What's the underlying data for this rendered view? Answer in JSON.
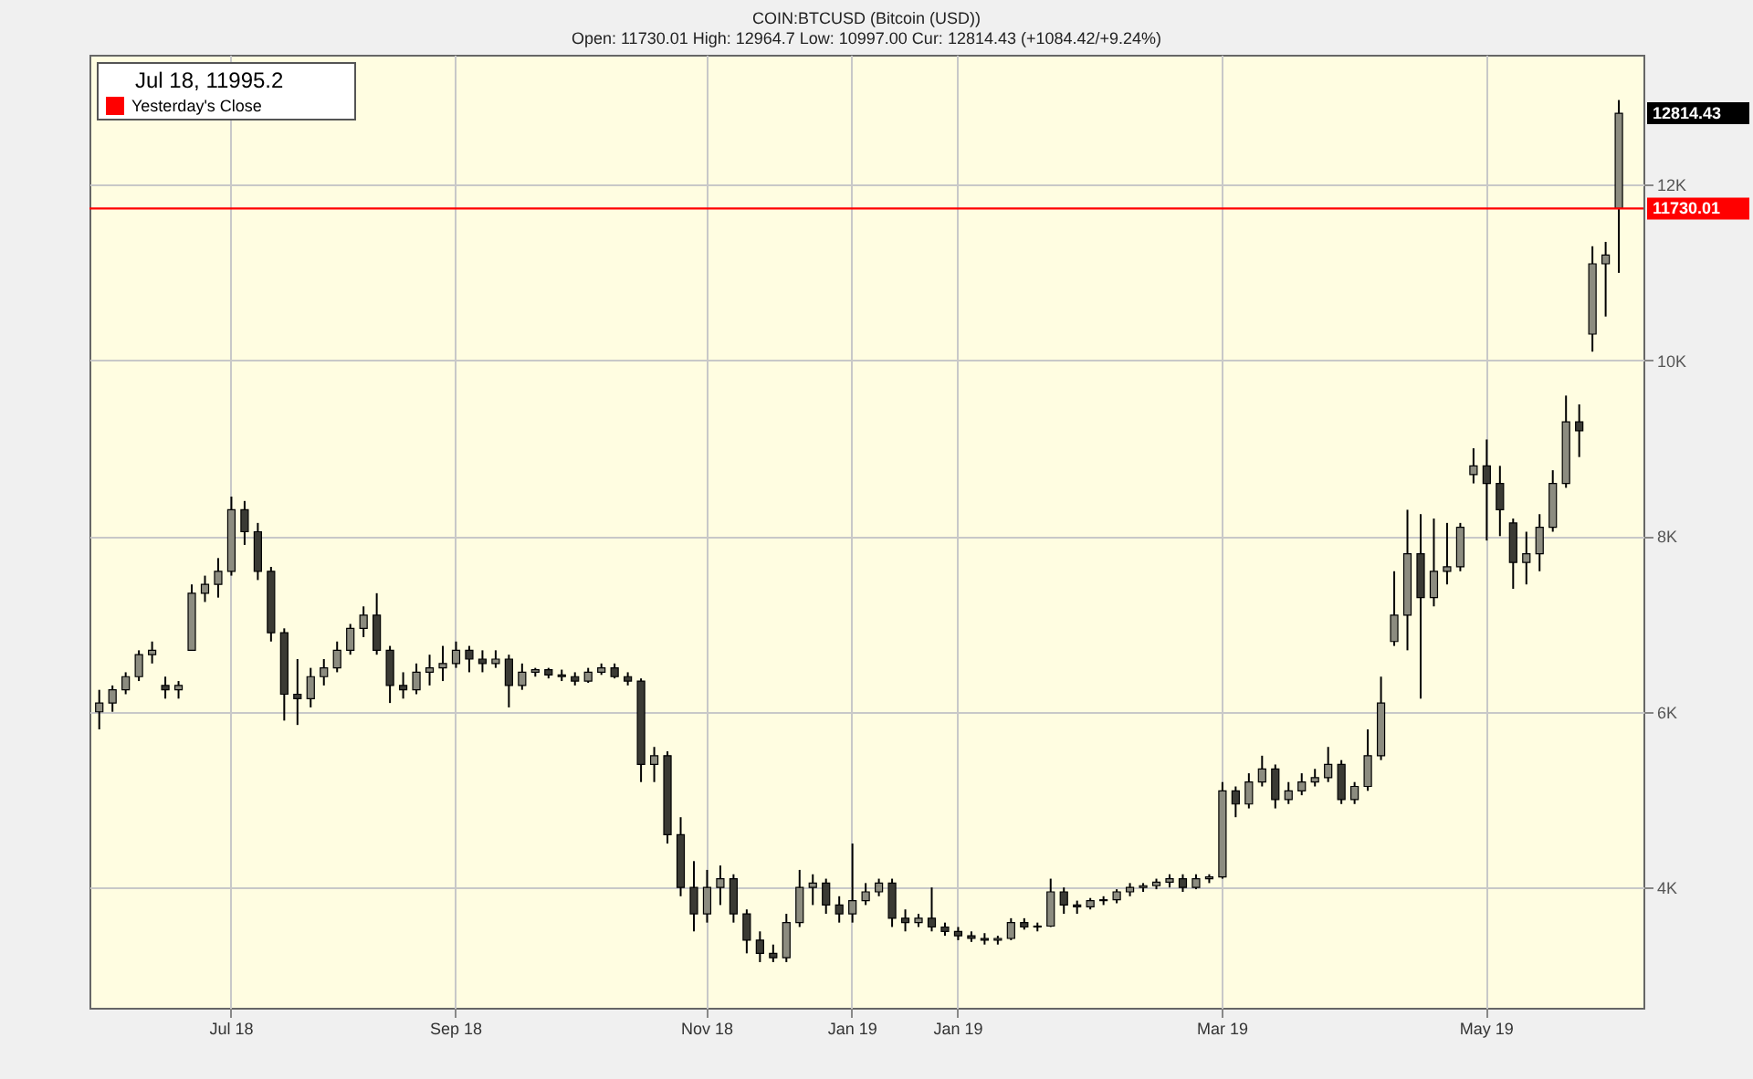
{
  "chart_data": {
    "type": "candlestick",
    "title": "COIN:BTCUSD (Bitcoin (USD))",
    "subtitle": "Open: 11730.01 High: 12964.7 Low: 10997.00 Cur: 12814.43 (+1084.42/+9.24%)",
    "categories": [
      null,
      null,
      null,
      null,
      null,
      null,
      null,
      null,
      null,
      null,
      "Jul 18",
      null,
      null,
      null,
      null,
      null,
      null,
      null,
      null,
      null,
      null,
      null,
      null,
      null,
      null,
      null,
      null,
      "Sep 18",
      null,
      null,
      null,
      null,
      null,
      null,
      null,
      null,
      null,
      null,
      null,
      null,
      null,
      null,
      null,
      null,
      null,
      null,
      "Nov 18",
      null,
      null,
      null,
      null,
      null,
      null,
      null,
      null,
      null,
      null,
      "Jan 19",
      null,
      null,
      null,
      null,
      null,
      null,
      null,
      "Jan 19",
      null,
      null,
      null,
      null,
      null,
      null,
      null,
      null,
      null,
      null,
      null,
      null,
      null,
      null,
      null,
      null,
      null,
      null,
      null,
      "Mar 19",
      null,
      null,
      null,
      null,
      null,
      null,
      null,
      null,
      null,
      null,
      null,
      null,
      null,
      null,
      null,
      null,
      null,
      null,
      null,
      "May 19",
      null,
      null,
      null,
      null,
      null,
      null,
      null,
      null,
      null,
      null
    ],
    "ohlc": [
      [
        6000,
        6250,
        5800,
        6100
      ],
      [
        6100,
        6300,
        6000,
        6250
      ],
      [
        6250,
        6450,
        6200,
        6400
      ],
      [
        6400,
        6700,
        6350,
        6650
      ],
      [
        6650,
        6800,
        6550,
        6700
      ],
      [
        6300,
        6400,
        6150,
        6250
      ],
      [
        6250,
        6350,
        6150,
        6300
      ],
      [
        6700,
        7450,
        6700,
        7350
      ],
      [
        7350,
        7550,
        7250,
        7450
      ],
      [
        7450,
        7750,
        7300,
        7600
      ],
      [
        7600,
        8450,
        7550,
        8300
      ],
      [
        8300,
        8400,
        7900,
        8050
      ],
      [
        8050,
        8150,
        7500,
        7600
      ],
      [
        7600,
        7650,
        6800,
        6900
      ],
      [
        6900,
        6950,
        5900,
        6200
      ],
      [
        6200,
        6600,
        5850,
        6150
      ],
      [
        6150,
        6500,
        6050,
        6400
      ],
      [
        6400,
        6600,
        6300,
        6500
      ],
      [
        6500,
        6800,
        6450,
        6700
      ],
      [
        6700,
        7000,
        6650,
        6950
      ],
      [
        6950,
        7200,
        6850,
        7100
      ],
      [
        7100,
        7350,
        6650,
        6700
      ],
      [
        6700,
        6750,
        6100,
        6300
      ],
      [
        6300,
        6450,
        6150,
        6250
      ],
      [
        6250,
        6550,
        6200,
        6450
      ],
      [
        6450,
        6650,
        6300,
        6500
      ],
      [
        6500,
        6750,
        6350,
        6550
      ],
      [
        6550,
        6800,
        6500,
        6700
      ],
      [
        6700,
        6750,
        6450,
        6600
      ],
      [
        6600,
        6700,
        6450,
        6550
      ],
      [
        6550,
        6700,
        6500,
        6600
      ],
      [
        6600,
        6650,
        6050,
        6300
      ],
      [
        6300,
        6550,
        6250,
        6450
      ],
      [
        6450,
        6500,
        6400,
        6480
      ],
      [
        6480,
        6500,
        6380,
        6420
      ],
      [
        6420,
        6480,
        6350,
        6400
      ],
      [
        6400,
        6450,
        6300,
        6350
      ],
      [
        6350,
        6500,
        6330,
        6450
      ],
      [
        6450,
        6550,
        6420,
        6500
      ],
      [
        6500,
        6550,
        6380,
        6400
      ],
      [
        6400,
        6450,
        6300,
        6350
      ],
      [
        6350,
        6380,
        5200,
        5400
      ],
      [
        5400,
        5600,
        5200,
        5500
      ],
      [
        5500,
        5550,
        4500,
        4600
      ],
      [
        4600,
        4800,
        3900,
        4000
      ],
      [
        4000,
        4300,
        3500,
        3700
      ],
      [
        3700,
        4200,
        3600,
        4000
      ],
      [
        4000,
        4250,
        3800,
        4100
      ],
      [
        4100,
        4150,
        3600,
        3700
      ],
      [
        3700,
        3750,
        3250,
        3400
      ],
      [
        3400,
        3500,
        3150,
        3250
      ],
      [
        3250,
        3350,
        3150,
        3200
      ],
      [
        3200,
        3700,
        3150,
        3600
      ],
      [
        3600,
        4200,
        3550,
        4000
      ],
      [
        4000,
        4150,
        3800,
        4050
      ],
      [
        4050,
        4100,
        3700,
        3800
      ],
      [
        3800,
        3900,
        3600,
        3700
      ],
      [
        3700,
        4500,
        3600,
        3850
      ],
      [
        3850,
        4050,
        3800,
        3950
      ],
      [
        3950,
        4100,
        3900,
        4050
      ],
      [
        4050,
        4100,
        3550,
        3650
      ],
      [
        3650,
        3750,
        3500,
        3600
      ],
      [
        3600,
        3700,
        3550,
        3650
      ],
      [
        3650,
        4000,
        3500,
        3550
      ],
      [
        3550,
        3600,
        3450,
        3500
      ],
      [
        3500,
        3550,
        3400,
        3450
      ],
      [
        3450,
        3500,
        3380,
        3420
      ],
      [
        3420,
        3480,
        3350,
        3400
      ],
      [
        3400,
        3450,
        3350,
        3420
      ],
      [
        3420,
        3650,
        3400,
        3600
      ],
      [
        3600,
        3650,
        3520,
        3550
      ],
      [
        3550,
        3600,
        3500,
        3560
      ],
      [
        3560,
        4100,
        3550,
        3950
      ],
      [
        3950,
        4000,
        3700,
        3800
      ],
      [
        3800,
        3850,
        3700,
        3780
      ],
      [
        3780,
        3880,
        3750,
        3850
      ],
      [
        3850,
        3900,
        3800,
        3860
      ],
      [
        3860,
        3980,
        3820,
        3950
      ],
      [
        3950,
        4050,
        3900,
        4000
      ],
      [
        4000,
        4050,
        3950,
        4020
      ],
      [
        4020,
        4100,
        3980,
        4060
      ],
      [
        4060,
        4150,
        4000,
        4100
      ],
      [
        4100,
        4150,
        3950,
        4000
      ],
      [
        4000,
        4150,
        3980,
        4100
      ],
      [
        4100,
        4150,
        4050,
        4120
      ],
      [
        4120,
        5200,
        4100,
        5100
      ],
      [
        5100,
        5150,
        4800,
        4950
      ],
      [
        4950,
        5300,
        4900,
        5200
      ],
      [
        5200,
        5500,
        5150,
        5350
      ],
      [
        5350,
        5400,
        4900,
        5000
      ],
      [
        5000,
        5200,
        4950,
        5100
      ],
      [
        5100,
        5300,
        5050,
        5200
      ],
      [
        5200,
        5350,
        5150,
        5250
      ],
      [
        5250,
        5600,
        5200,
        5400
      ],
      [
        5400,
        5450,
        4950,
        5000
      ],
      [
        5000,
        5200,
        4950,
        5150
      ],
      [
        5150,
        5800,
        5100,
        5500
      ],
      [
        5500,
        6400,
        5450,
        6100
      ],
      [
        6800,
        7600,
        6750,
        7100
      ],
      [
        7100,
        8300,
        6700,
        7800
      ],
      [
        7800,
        8250,
        6150,
        7300
      ],
      [
        7300,
        8200,
        7200,
        7600
      ],
      [
        7600,
        8150,
        7450,
        7650
      ],
      [
        7650,
        8150,
        7600,
        8100
      ],
      [
        8700,
        9000,
        8600,
        8800
      ],
      [
        8800,
        9100,
        7950,
        8600
      ],
      [
        8600,
        8800,
        8000,
        8300
      ],
      [
        8150,
        8200,
        7400,
        7700
      ],
      [
        7700,
        8050,
        7450,
        7800
      ],
      [
        7800,
        8250,
        7600,
        8100
      ],
      [
        8100,
        8750,
        8050,
        8600
      ],
      [
        8600,
        9600,
        8550,
        9300
      ],
      [
        9300,
        9500,
        8900,
        9200
      ],
      [
        10300,
        11300,
        10100,
        11100
      ],
      [
        11100,
        11350,
        10500,
        11200
      ],
      [
        11730.01,
        12964.7,
        10997,
        12814.43
      ]
    ],
    "colors": [
      "#8c8c80",
      "#8c8c80",
      "#8c8c80",
      "#8c8c80",
      "#8c8c80",
      "#3a3a34",
      "#8c8c80",
      "#8c8c80",
      "#8c8c80",
      "#8c8c80",
      "#8c8c80",
      "#3a3a34",
      "#3a3a34",
      "#3a3a34",
      "#3a3a34",
      "#3a3a34",
      "#8c8c80",
      "#8c8c80",
      "#8c8c80",
      "#8c8c80",
      "#8c8c80",
      "#3a3a34",
      "#3a3a34",
      "#3a3a34",
      "#8c8c80",
      "#8c8c80",
      "#8c8c80",
      "#8c8c80",
      "#3a3a34",
      "#3a3a34",
      "#8c8c80",
      "#3a3a34",
      "#8c8c80",
      "#8c8c80",
      "#3a3a34",
      "#3a3a34",
      "#3a3a34",
      "#8c8c80",
      "#8c8c80",
      "#3a3a34",
      "#3a3a34",
      "#3a3a34",
      "#8c8c80",
      "#3a3a34",
      "#3a3a34",
      "#3a3a34",
      "#8c8c80",
      "#8c8c80",
      "#3a3a34",
      "#3a3a34",
      "#3a3a34",
      "#3a3a34",
      "#8c8c80",
      "#8c8c80",
      "#8c8c80",
      "#3a3a34",
      "#3a3a34",
      "#8c8c80",
      "#8c8c80",
      "#8c8c80",
      "#3a3a34",
      "#3a3a34",
      "#8c8c80",
      "#3a3a34",
      "#3a3a34",
      "#3a3a34",
      "#3a3a34",
      "#3a3a34",
      "#8c8c80",
      "#8c8c80",
      "#3a3a34",
      "#8c8c80",
      "#8c8c80",
      "#3a3a34",
      "#3a3a34",
      "#8c8c80",
      "#8c8c80",
      "#8c8c80",
      "#8c8c80",
      "#8c8c80",
      "#8c8c80",
      "#8c8c80",
      "#3a3a34",
      "#8c8c80",
      "#8c8c80",
      "#8c8c80",
      "#3a3a34",
      "#8c8c80",
      "#8c8c80",
      "#3a3a34",
      "#8c8c80",
      "#8c8c80",
      "#8c8c80",
      "#8c8c80",
      "#3a3a34",
      "#8c8c80",
      "#8c8c80",
      "#8c8c80",
      "#8c8c80",
      "#8c8c80",
      "#3a3a34",
      "#8c8c80",
      "#8c8c80",
      "#8c8c80",
      "#8c8c80",
      "#3a3a34",
      "#3a3a34",
      "#3a3a34",
      "#8c8c80",
      "#8c8c80",
      "#8c8c80",
      "#8c8c80",
      "#3a3a34",
      "#8c8c80",
      "#8c8c80",
      "#8c8c80"
    ],
    "ylim": [
      2630,
      13480
    ],
    "yticks": [
      {
        "value": 4000,
        "label": "4K"
      },
      {
        "value": 6000,
        "label": "6K"
      },
      {
        "value": 8000,
        "label": "8K"
      },
      {
        "value": 10000,
        "label": "10K"
      },
      {
        "value": 12000,
        "label": "12K"
      }
    ],
    "grid": true,
    "legend": "top left",
    "ref_lines": [
      {
        "axis": "y",
        "value": 11730.01,
        "label": "Yesterday's Close",
        "color": "#ff0000"
      }
    ],
    "annotations": [
      "Jul 18, 11995.2",
      "12814.43",
      "11730.01"
    ]
  }
}
